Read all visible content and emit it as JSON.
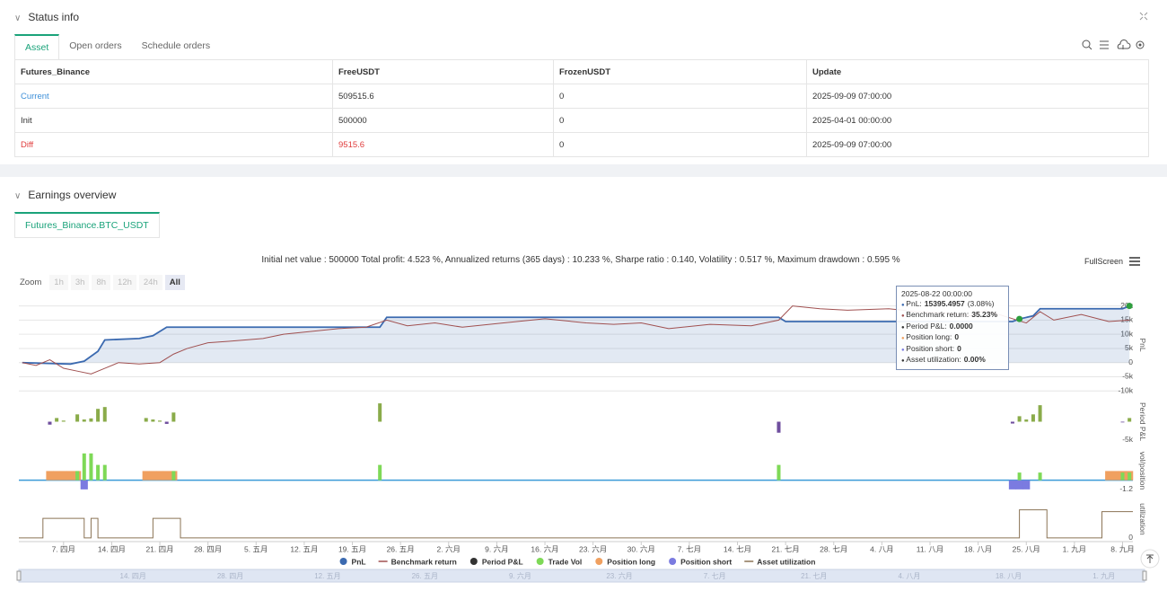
{
  "status": {
    "title": "Status info",
    "tabs": [
      "Asset",
      "Open orders",
      "Schedule orders"
    ],
    "table": {
      "columns": [
        "Futures_Binance",
        "FreeUSDT",
        "FrozenUSDT",
        "Update"
      ],
      "rows": [
        [
          "Current",
          509515.6,
          0,
          "2025-09-09 07:00:00"
        ],
        [
          "Init",
          500000,
          0,
          "2025-04-01 00:00:00"
        ],
        [
          "Diff",
          9515.6,
          0,
          "2025-09-09 07:00:00"
        ]
      ]
    }
  },
  "earnings": {
    "title": "Earnings overview",
    "tab": "Futures_Binance.BTC_USDT",
    "summary": "Initial net value : 500000 Total profit: 4.523 %, Annualized returns (365 days) : 10.233 %, Sharpe ratio : 0.140, Volatility : 0.517 %, Maximum drawdown : 0.595 %",
    "fullscreen": "FullScreen",
    "zoom": {
      "label": "Zoom",
      "buttons": [
        "1h",
        "3h",
        "8h",
        "12h",
        "24h",
        "All"
      ]
    },
    "tooltip": {
      "title": "2025-08-22 00:00:00",
      "items": [
        {
          "label": "PnL:",
          "value": "15395.4957",
          "extra": "(3.08%)",
          "color": "#3b6ab0"
        },
        {
          "label": "Benchmark return:",
          "value": "35.23%",
          "color": "#a05050"
        },
        {
          "label": "Period P&L:",
          "value": "0.0000",
          "color": "#333333"
        },
        {
          "label": "Position long:",
          "value": "0",
          "color": "#f0a060"
        },
        {
          "label": "Position short:",
          "value": "0",
          "color": "#7b7be0"
        },
        {
          "label": "Asset utilization:",
          "value": "0.00%",
          "color": "#333333"
        }
      ]
    },
    "chart": {
      "xlim": [
        -0.5,
        161.5
      ],
      "xticks": [
        {
          "value": 6,
          "label": "7. 四月"
        },
        {
          "value": 13,
          "label": "14. 四月"
        },
        {
          "value": 20,
          "label": "21. 四月"
        },
        {
          "value": 27,
          "label": "28. 四月"
        },
        {
          "value": 34,
          "label": "5. 五月"
        },
        {
          "value": 41,
          "label": "12. 五月"
        },
        {
          "value": 48,
          "label": "19. 五月"
        },
        {
          "value": 55,
          "label": "26. 五月"
        },
        {
          "value": 62,
          "label": "2. 六月"
        },
        {
          "value": 69,
          "label": "9. 六月"
        },
        {
          "value": 76,
          "label": "16. 六月"
        },
        {
          "value": 83,
          "label": "23. 六月"
        },
        {
          "value": 90,
          "label": "30. 六月"
        },
        {
          "value": 97,
          "label": "7. 七月"
        },
        {
          "value": 104,
          "label": "14. 七月"
        },
        {
          "value": 111,
          "label": "21. 七月"
        },
        {
          "value": 118,
          "label": "28. 七月"
        },
        {
          "value": 125,
          "label": "4. 八月"
        },
        {
          "value": 132,
          "label": "11. 八月"
        },
        {
          "value": 139,
          "label": "18. 八月"
        },
        {
          "value": 146,
          "label": "25. 八月"
        },
        {
          "value": 153,
          "label": "1. 九月"
        },
        {
          "value": 160,
          "label": "8. 九月"
        }
      ],
      "panels": [
        {
          "label": "PnL",
          "ylim": [
            -11500,
            24000
          ],
          "grid": true,
          "yticks": [
            {
              "value": -10000,
              "label": "-10k"
            },
            {
              "value": -5000,
              "label": "-5k"
            },
            0,
            {
              "value": 5000,
              "label": "5k"
            },
            {
              "value": 10000,
              "label": "10k"
            },
            {
              "value": 15000,
              "label": "15k"
            },
            {
              "value": 20000,
              "label": "20k"
            }
          ],
          "series": [
            {
              "name": "PnL",
              "type": "area",
              "color": "#3b6ab0",
              "x": [
                0,
                7,
                9,
                11,
                12,
                17,
                19,
                21,
                52,
                53,
                110,
                111,
                144,
                145,
                147,
                148,
                160,
                161
              ],
              "values": [
                0,
                -500,
                500,
                4000,
                8000,
                8500,
                9500,
                12500,
                12500,
                16000,
                16000,
                14500,
                14500,
                15395.4957,
                16500,
                19000,
                19000,
                20000
              ]
            },
            {
              "name": "Benchmark return",
              "type": "line",
              "color": "#a05050",
              "x": [
                0,
                2,
                4,
                6,
                8,
                10,
                12,
                14,
                17,
                20,
                22,
                24,
                27,
                30,
                35,
                38,
                42,
                46,
                50,
                53,
                56,
                60,
                64,
                70,
                76,
                82,
                86,
                90,
                94,
                100,
                106,
                110,
                112,
                116,
                120,
                126,
                130,
                134,
                138,
                140,
                144,
                146,
                148,
                150,
                154,
                158,
                161
              ],
              "values": [
                0,
                -1000,
                1000,
                -2000,
                -3000,
                -4000,
                -2000,
                0,
                -500,
                0,
                3000,
                5000,
                7000,
                7500,
                8500,
                10000,
                11000,
                12000,
                12500,
                15000,
                13000,
                14000,
                12500,
                14000,
                15500,
                14000,
                13500,
                14000,
                12000,
                13500,
                13000,
                15000,
                20000,
                19000,
                18500,
                19000,
                18000,
                17500,
                16500,
                18500,
                15500,
                14000,
                18000,
                15000,
                17000,
                14500,
                15000
              ]
            }
          ]
        },
        {
          "label": "Period P&L",
          "ylim": [
            -6000,
            6000
          ],
          "grid": false,
          "yticks": [
            {
              "value": -5000,
              "label": "-5k"
            }
          ],
          "series": [
            {
              "name": "Period P&L",
              "type": "bar",
              "color": "#333333",
              "pos_color": "#8aab4a",
              "neg_color": "#6f4e9e",
              "x": [
                4,
                5,
                6,
                8,
                9,
                10,
                11,
                12,
                18,
                19,
                20,
                21,
                22,
                52,
                110,
                144,
                145,
                146,
                147,
                148,
                160,
                161
              ],
              "values": [
                -800,
                1000,
                300,
                2000,
                600,
                900,
                3500,
                4000,
                1000,
                600,
                300,
                -600,
                2500,
                5000,
                -3000,
                -500,
                1500,
                600,
                2000,
                4500,
                -200,
                1000
              ]
            }
          ]
        },
        {
          "label": "vol/position",
          "ylim": [
            -1.8,
            4.3
          ],
          "grid": false,
          "yticks": [
            -1.2
          ],
          "series": [
            {
              "name": "Trade Vol",
              "type": "bar",
              "color": "#7ed957",
              "x": [
                8,
                9,
                10,
                11,
                12,
                22,
                52,
                110,
                145,
                148,
                160,
                161
              ],
              "values": [
                1.2,
                3.5,
                3.5,
                2,
                2,
                1.2,
                2,
                2,
                1,
                1,
                1,
                1
              ]
            },
            {
              "name": "Position long",
              "type": "band",
              "color": "#f0a060",
              "x": [
                4,
                5,
                6,
                7,
                8,
                18,
                19,
                20,
                21,
                22,
                158,
                159,
                160,
                161
              ],
              "values": [
                1.2,
                1.2,
                1.2,
                1.2,
                1.2,
                1.2,
                1.2,
                1.2,
                1.2,
                1.2,
                1.2,
                1.2,
                1.2,
                1.2
              ]
            },
            {
              "name": "Position short",
              "type": "band",
              "color": "#7b7be0",
              "x": [
                9,
                144,
                145,
                146
              ],
              "values": [
                -1.2,
                -1.2,
                -1.2,
                -1.2
              ]
            }
          ]
        },
        {
          "label": "utilization",
          "ylim": [
            -0.1,
            1.1
          ],
          "grid": false,
          "yticks": [
            0
          ],
          "series": [
            {
              "name": "Asset utilization",
              "type": "step",
              "color": "#8b7355",
              "x": [
                -0.5,
                3,
                9,
                10,
                11,
                19,
                23,
                145,
                149,
                157,
                161.5
              ],
              "values": [
                0,
                0.52,
                0,
                0.52,
                0,
                0.52,
                0,
                0.75,
                0,
                0.7,
                0.7
              ]
            }
          ]
        }
      ]
    }
  }
}
